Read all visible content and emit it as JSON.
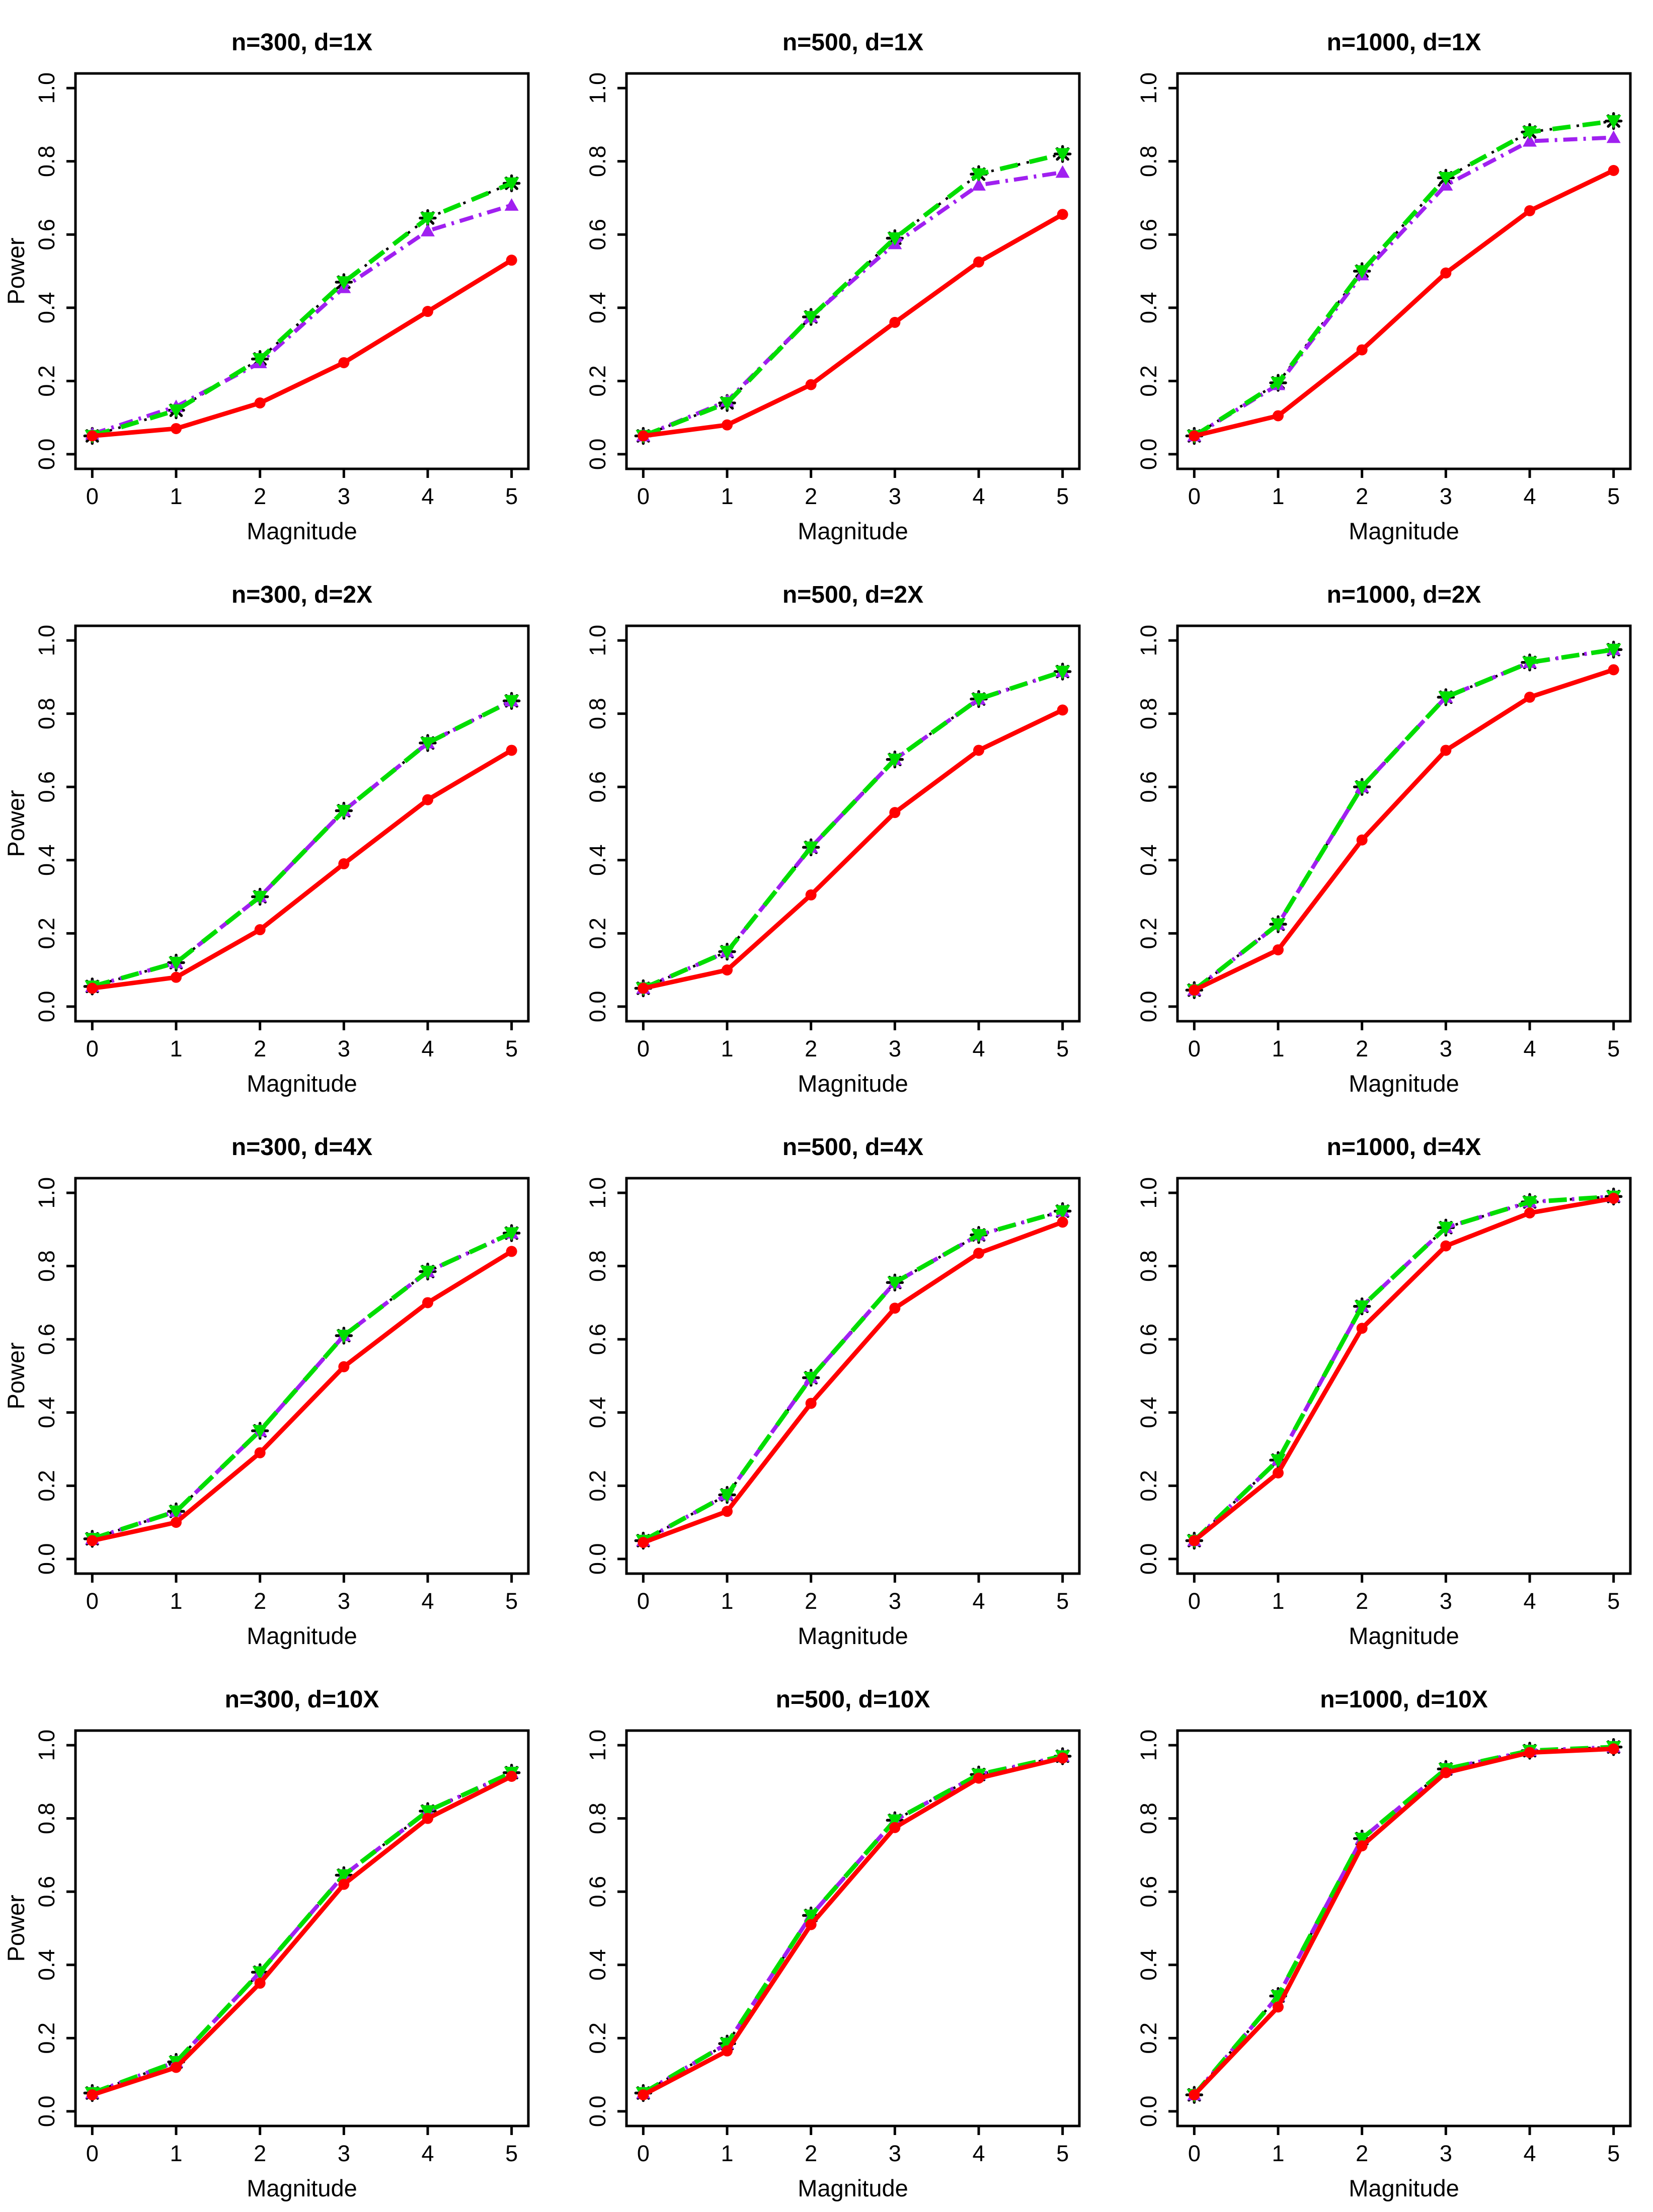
{
  "page": {
    "background": "#FFFFFF",
    "grid": {
      "rows": 4,
      "cols": 3
    }
  },
  "axes": {
    "xlabel": "Magnitude",
    "ylabel": "Power",
    "xticks": [
      "0",
      "1",
      "2",
      "3",
      "4",
      "5"
    ],
    "yticks": [
      "0.0",
      "0.2",
      "0.4",
      "0.6",
      "0.8",
      "1.0"
    ]
  },
  "series_styles": [
    {
      "key": "black_dotted_star",
      "color": "#000000",
      "line": "dotted",
      "dash": "5 13",
      "width": 5,
      "marker": "asterisk",
      "marker_size": 15
    },
    {
      "key": "purple_dashdot_triangle",
      "color": "#A020F0",
      "line": "dash-dot",
      "dash": "28 12 5 12",
      "width": 8,
      "marker": "triangle-up",
      "marker_size": 14
    },
    {
      "key": "green_dashed_triangle",
      "color": "#00DD00",
      "line": "dashed",
      "dash": "36 24",
      "width": 9,
      "marker": "triangle-down",
      "marker_size": 15
    },
    {
      "key": "red_solid_circle",
      "color": "#FF0000",
      "line": "solid",
      "dash": "",
      "width": 9,
      "marker": "circle",
      "marker_size": 11
    }
  ],
  "chart_data": [
    {
      "type": "line",
      "title": "n=300, d=1X",
      "xlabel": "Magnitude",
      "ylabel": "Power",
      "show_ylabel": true,
      "x": [
        0,
        1,
        2,
        3,
        4,
        5
      ],
      "xlim": [
        0,
        5
      ],
      "ylim": [
        0,
        1
      ],
      "grid_lines": false,
      "legend": "none",
      "series": [
        {
          "name": "black_dotted_star",
          "values": [
            0.05,
            0.12,
            0.26,
            0.47,
            0.645,
            0.74
          ]
        },
        {
          "name": "purple_dashdot_triangle",
          "values": [
            0.055,
            0.13,
            0.25,
            0.455,
            0.61,
            0.68
          ]
        },
        {
          "name": "green_dashed_triangle",
          "values": [
            0.05,
            0.12,
            0.26,
            0.47,
            0.645,
            0.74
          ]
        },
        {
          "name": "red_solid_circle",
          "values": [
            0.05,
            0.07,
            0.14,
            0.25,
            0.39,
            0.53
          ]
        }
      ]
    },
    {
      "type": "line",
      "title": "n=500, d=1X",
      "xlabel": "Magnitude",
      "ylabel": "Power",
      "show_ylabel": false,
      "x": [
        0,
        1,
        2,
        3,
        4,
        5
      ],
      "xlim": [
        0,
        5
      ],
      "ylim": [
        0,
        1
      ],
      "grid_lines": false,
      "legend": "none",
      "series": [
        {
          "name": "black_dotted_star",
          "values": [
            0.05,
            0.14,
            0.375,
            0.59,
            0.765,
            0.82
          ]
        },
        {
          "name": "purple_dashdot_triangle",
          "values": [
            0.05,
            0.145,
            0.375,
            0.575,
            0.735,
            0.77
          ]
        },
        {
          "name": "green_dashed_triangle",
          "values": [
            0.05,
            0.14,
            0.375,
            0.59,
            0.765,
            0.82
          ]
        },
        {
          "name": "red_solid_circle",
          "values": [
            0.05,
            0.08,
            0.19,
            0.36,
            0.525,
            0.655
          ]
        }
      ]
    },
    {
      "type": "line",
      "title": "n=1000, d=1X",
      "xlabel": "Magnitude",
      "ylabel": "Power",
      "show_ylabel": false,
      "x": [
        0,
        1,
        2,
        3,
        4,
        5
      ],
      "xlim": [
        0,
        5
      ],
      "ylim": [
        0,
        1
      ],
      "grid_lines": false,
      "legend": "none",
      "series": [
        {
          "name": "black_dotted_star",
          "values": [
            0.05,
            0.195,
            0.5,
            0.755,
            0.88,
            0.91
          ]
        },
        {
          "name": "purple_dashdot_triangle",
          "values": [
            0.05,
            0.19,
            0.49,
            0.735,
            0.855,
            0.865
          ]
        },
        {
          "name": "green_dashed_triangle",
          "values": [
            0.05,
            0.195,
            0.5,
            0.755,
            0.88,
            0.91
          ]
        },
        {
          "name": "red_solid_circle",
          "values": [
            0.05,
            0.105,
            0.285,
            0.495,
            0.665,
            0.775
          ]
        }
      ]
    },
    {
      "type": "line",
      "title": "n=300, d=2X",
      "xlabel": "Magnitude",
      "ylabel": "Power",
      "show_ylabel": true,
      "x": [
        0,
        1,
        2,
        3,
        4,
        5
      ],
      "xlim": [
        0,
        5
      ],
      "ylim": [
        0,
        1
      ],
      "grid_lines": false,
      "legend": "none",
      "series": [
        {
          "name": "black_dotted_star",
          "values": [
            0.055,
            0.12,
            0.3,
            0.535,
            0.72,
            0.835
          ]
        },
        {
          "name": "purple_dashdot_triangle",
          "values": [
            0.055,
            0.12,
            0.3,
            0.535,
            0.72,
            0.835
          ]
        },
        {
          "name": "green_dashed_triangle",
          "values": [
            0.055,
            0.12,
            0.3,
            0.535,
            0.72,
            0.835
          ]
        },
        {
          "name": "red_solid_circle",
          "values": [
            0.05,
            0.08,
            0.21,
            0.39,
            0.565,
            0.7
          ]
        }
      ]
    },
    {
      "type": "line",
      "title": "n=500, d=2X",
      "xlabel": "Magnitude",
      "ylabel": "Power",
      "show_ylabel": false,
      "x": [
        0,
        1,
        2,
        3,
        4,
        5
      ],
      "xlim": [
        0,
        5
      ],
      "ylim": [
        0,
        1
      ],
      "grid_lines": false,
      "legend": "none",
      "series": [
        {
          "name": "black_dotted_star",
          "values": [
            0.05,
            0.15,
            0.435,
            0.675,
            0.84,
            0.915
          ]
        },
        {
          "name": "purple_dashdot_triangle",
          "values": [
            0.05,
            0.15,
            0.435,
            0.675,
            0.84,
            0.915
          ]
        },
        {
          "name": "green_dashed_triangle",
          "values": [
            0.05,
            0.15,
            0.435,
            0.675,
            0.84,
            0.915
          ]
        },
        {
          "name": "red_solid_circle",
          "values": [
            0.05,
            0.1,
            0.305,
            0.53,
            0.7,
            0.81
          ]
        }
      ]
    },
    {
      "type": "line",
      "title": "n=1000, d=2X",
      "xlabel": "Magnitude",
      "ylabel": "Power",
      "show_ylabel": false,
      "x": [
        0,
        1,
        2,
        3,
        4,
        5
      ],
      "xlim": [
        0,
        5
      ],
      "ylim": [
        0,
        1
      ],
      "grid_lines": false,
      "legend": "none",
      "series": [
        {
          "name": "black_dotted_star",
          "values": [
            0.045,
            0.225,
            0.6,
            0.845,
            0.94,
            0.975
          ]
        },
        {
          "name": "purple_dashdot_triangle",
          "values": [
            0.045,
            0.225,
            0.6,
            0.845,
            0.94,
            0.975
          ]
        },
        {
          "name": "green_dashed_triangle",
          "values": [
            0.045,
            0.225,
            0.6,
            0.845,
            0.94,
            0.975
          ]
        },
        {
          "name": "red_solid_circle",
          "values": [
            0.045,
            0.155,
            0.455,
            0.7,
            0.845,
            0.92
          ]
        }
      ]
    },
    {
      "type": "line",
      "title": "n=300, d=4X",
      "xlabel": "Magnitude",
      "ylabel": "Power",
      "show_ylabel": true,
      "x": [
        0,
        1,
        2,
        3,
        4,
        5
      ],
      "xlim": [
        0,
        5
      ],
      "ylim": [
        0,
        1
      ],
      "grid_lines": false,
      "legend": "none",
      "series": [
        {
          "name": "black_dotted_star",
          "values": [
            0.055,
            0.13,
            0.35,
            0.61,
            0.785,
            0.89
          ]
        },
        {
          "name": "purple_dashdot_triangle",
          "values": [
            0.055,
            0.13,
            0.35,
            0.61,
            0.785,
            0.89
          ]
        },
        {
          "name": "green_dashed_triangle",
          "values": [
            0.055,
            0.13,
            0.35,
            0.61,
            0.785,
            0.89
          ]
        },
        {
          "name": "red_solid_circle",
          "values": [
            0.05,
            0.1,
            0.29,
            0.525,
            0.7,
            0.84
          ]
        }
      ]
    },
    {
      "type": "line",
      "title": "n=500, d=4X",
      "xlabel": "Magnitude",
      "ylabel": "Power",
      "show_ylabel": false,
      "x": [
        0,
        1,
        2,
        3,
        4,
        5
      ],
      "xlim": [
        0,
        5
      ],
      "ylim": [
        0,
        1
      ],
      "grid_lines": false,
      "legend": "none",
      "series": [
        {
          "name": "black_dotted_star",
          "values": [
            0.05,
            0.175,
            0.495,
            0.755,
            0.885,
            0.95
          ]
        },
        {
          "name": "purple_dashdot_triangle",
          "values": [
            0.05,
            0.175,
            0.495,
            0.755,
            0.885,
            0.95
          ]
        },
        {
          "name": "green_dashed_triangle",
          "values": [
            0.05,
            0.175,
            0.495,
            0.755,
            0.885,
            0.95
          ]
        },
        {
          "name": "red_solid_circle",
          "values": [
            0.045,
            0.13,
            0.425,
            0.685,
            0.835,
            0.92
          ]
        }
      ]
    },
    {
      "type": "line",
      "title": "n=1000, d=4X",
      "xlabel": "Magnitude",
      "ylabel": "Power",
      "show_ylabel": false,
      "x": [
        0,
        1,
        2,
        3,
        4,
        5
      ],
      "xlim": [
        0,
        5
      ],
      "ylim": [
        0,
        1
      ],
      "grid_lines": false,
      "legend": "none",
      "series": [
        {
          "name": "black_dotted_star",
          "values": [
            0.05,
            0.27,
            0.69,
            0.905,
            0.975,
            0.99
          ]
        },
        {
          "name": "purple_dashdot_triangle",
          "values": [
            0.05,
            0.27,
            0.69,
            0.905,
            0.975,
            0.99
          ]
        },
        {
          "name": "green_dashed_triangle",
          "values": [
            0.05,
            0.27,
            0.69,
            0.905,
            0.975,
            0.99
          ]
        },
        {
          "name": "red_solid_circle",
          "values": [
            0.05,
            0.235,
            0.63,
            0.855,
            0.945,
            0.985
          ]
        }
      ]
    },
    {
      "type": "line",
      "title": "n=300, d=10X",
      "xlabel": "Magnitude",
      "ylabel": "Power",
      "show_ylabel": true,
      "x": [
        0,
        1,
        2,
        3,
        4,
        5
      ],
      "xlim": [
        0,
        5
      ],
      "ylim": [
        0,
        1
      ],
      "grid_lines": false,
      "legend": "none",
      "series": [
        {
          "name": "black_dotted_star",
          "values": [
            0.05,
            0.135,
            0.38,
            0.645,
            0.82,
            0.925
          ]
        },
        {
          "name": "purple_dashdot_triangle",
          "values": [
            0.05,
            0.135,
            0.38,
            0.645,
            0.82,
            0.925
          ]
        },
        {
          "name": "green_dashed_triangle",
          "values": [
            0.05,
            0.135,
            0.38,
            0.645,
            0.82,
            0.925
          ]
        },
        {
          "name": "red_solid_circle",
          "values": [
            0.045,
            0.12,
            0.35,
            0.62,
            0.8,
            0.915
          ]
        }
      ]
    },
    {
      "type": "line",
      "title": "n=500, d=10X",
      "xlabel": "Magnitude",
      "ylabel": "Power",
      "show_ylabel": false,
      "x": [
        0,
        1,
        2,
        3,
        4,
        5
      ],
      "xlim": [
        0,
        5
      ],
      "ylim": [
        0,
        1
      ],
      "grid_lines": false,
      "legend": "none",
      "series": [
        {
          "name": "black_dotted_star",
          "values": [
            0.05,
            0.185,
            0.535,
            0.795,
            0.92,
            0.97
          ]
        },
        {
          "name": "purple_dashdot_triangle",
          "values": [
            0.05,
            0.185,
            0.535,
            0.795,
            0.92,
            0.97
          ]
        },
        {
          "name": "green_dashed_triangle",
          "values": [
            0.05,
            0.185,
            0.535,
            0.795,
            0.92,
            0.97
          ]
        },
        {
          "name": "red_solid_circle",
          "values": [
            0.045,
            0.165,
            0.51,
            0.775,
            0.91,
            0.965
          ]
        }
      ]
    },
    {
      "type": "line",
      "title": "n=1000, d=10X",
      "xlabel": "Magnitude",
      "ylabel": "Power",
      "show_ylabel": false,
      "x": [
        0,
        1,
        2,
        3,
        4,
        5
      ],
      "xlim": [
        0,
        5
      ],
      "ylim": [
        0,
        1
      ],
      "grid_lines": false,
      "legend": "none",
      "series": [
        {
          "name": "black_dotted_star",
          "values": [
            0.045,
            0.315,
            0.745,
            0.935,
            0.985,
            0.995
          ]
        },
        {
          "name": "purple_dashdot_triangle",
          "values": [
            0.045,
            0.315,
            0.745,
            0.935,
            0.985,
            0.995
          ]
        },
        {
          "name": "green_dashed_triangle",
          "values": [
            0.045,
            0.315,
            0.745,
            0.935,
            0.985,
            0.995
          ]
        },
        {
          "name": "red_solid_circle",
          "values": [
            0.045,
            0.285,
            0.725,
            0.925,
            0.98,
            0.99
          ]
        }
      ]
    }
  ]
}
